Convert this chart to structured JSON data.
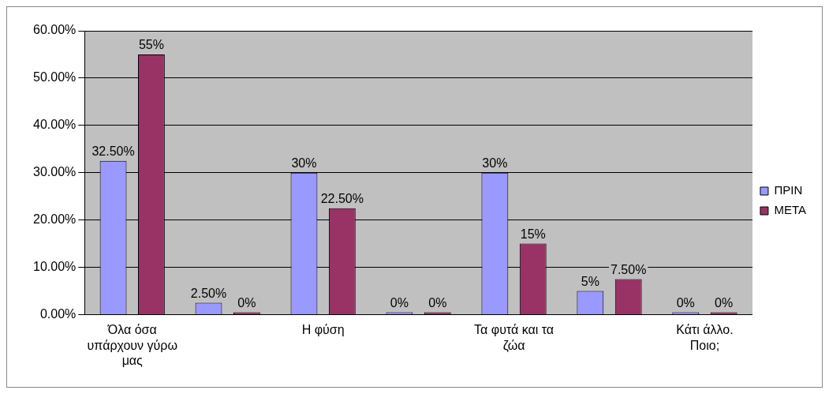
{
  "chart_data": {
    "type": "bar",
    "categories": [
      "Όλα όσα υπάρχουν γύρω μας",
      null,
      "Η φύση",
      null,
      "Τα φυτά και τα ζώα",
      null,
      "Κάτι άλλο. Ποιο;"
    ],
    "series": [
      {
        "name": "ΠΡΙΝ",
        "color": "#9999ff",
        "values": [
          32.5,
          2.5,
          30,
          0,
          30,
          5,
          0
        ],
        "value_labels": [
          "32.50%",
          "2.50%",
          "30%",
          "0%",
          "30%",
          "5%",
          "0%"
        ]
      },
      {
        "name": "ΜΕΤΑ",
        "color": "#993366",
        "values": [
          55,
          0,
          22.5,
          0,
          15,
          7.5,
          0
        ],
        "value_labels": [
          "55%",
          "0%",
          "22.50%",
          "0%",
          "15%",
          "7.50%",
          "0%"
        ]
      }
    ],
    "ylim": [
      0,
      60
    ],
    "yticks": [
      {
        "value": 0,
        "label": "0.00%"
      },
      {
        "value": 10,
        "label": "10.00%"
      },
      {
        "value": 20,
        "label": "20.00%"
      },
      {
        "value": 30,
        "label": "30.00%"
      },
      {
        "value": 40,
        "label": "40.00%"
      },
      {
        "value": 50,
        "label": "50.00%"
      },
      {
        "value": 60,
        "label": "60.00%"
      }
    ],
    "grid": "y",
    "legend": "right"
  }
}
